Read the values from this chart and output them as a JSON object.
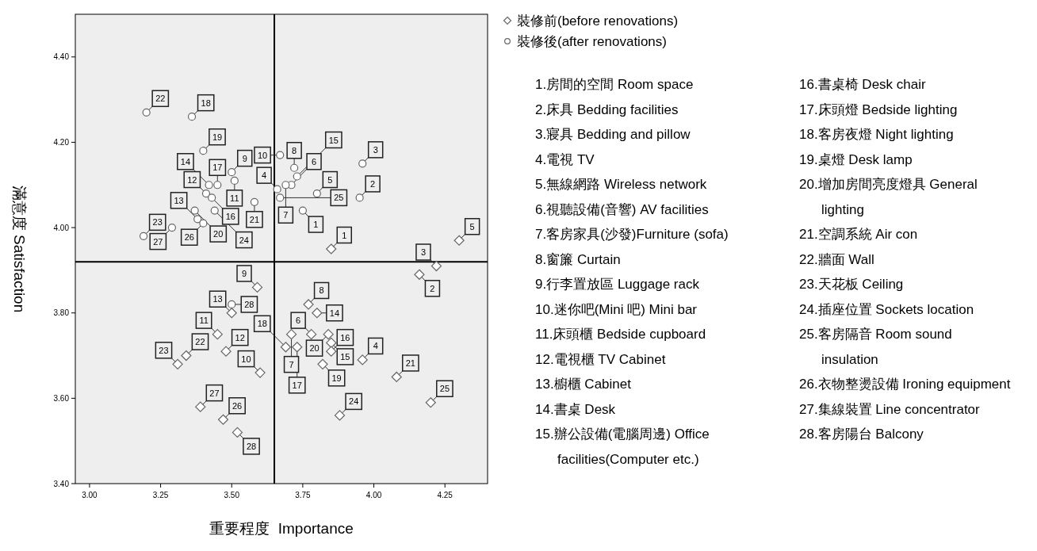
{
  "chart_data": {
    "type": "scatter",
    "xlabel": "重要程度  Importance",
    "ylabel": "滿意度 Satisfaction",
    "xlim": [
      2.95,
      4.4
    ],
    "ylim": [
      3.4,
      4.5
    ],
    "xticks": [
      {
        "value": 3,
        "label": "3.00"
      },
      {
        "value": 3.25,
        "label": "3.25"
      },
      {
        "value": 3.5,
        "label": "3.50"
      },
      {
        "value": 3.75,
        "label": "3.75"
      },
      {
        "value": 4,
        "label": "4.00"
      },
      {
        "value": 4.25,
        "label": "4.25"
      }
    ],
    "yticks": [
      {
        "value": 3.4,
        "label": "3.40"
      },
      {
        "value": 3.6,
        "label": "3.60"
      },
      {
        "value": 3.8,
        "label": "3.80"
      },
      {
        "value": 4,
        "label": "4.00"
      },
      {
        "value": 4.2,
        "label": "4.20"
      },
      {
        "value": 4.4,
        "label": "4.40"
      }
    ],
    "legend": "top right",
    "grid": false,
    "ref_lines": [
      {
        "axis": "x",
        "value": 3.65
      },
      {
        "axis": "y",
        "value": 3.92
      }
    ],
    "series": [
      {
        "name": "裝修前(before renovations)",
        "color": "#666666",
        "marker": "diamond",
        "x": [
          3.85,
          4.16,
          4.22,
          3.96,
          4.3,
          3.78,
          3.71,
          3.77,
          3.59,
          3.6,
          3.45,
          3.48,
          3.5,
          3.8,
          3.85,
          3.85,
          3.73,
          3.69,
          3.82,
          3.84,
          4.08,
          3.34,
          3.31,
          3.88,
          4.2,
          3.47,
          3.39,
          3.52
        ],
        "values": [
          3.95,
          3.89,
          3.91,
          3.69,
          3.97,
          3.75,
          3.75,
          3.82,
          3.86,
          3.66,
          3.75,
          3.71,
          3.8,
          3.8,
          3.73,
          3.71,
          3.72,
          3.72,
          3.68,
          3.75,
          3.65,
          3.7,
          3.68,
          3.56,
          3.59,
          3.55,
          3.58,
          3.52
        ]
      },
      {
        "name": "裝修後(after renovations)",
        "color": "#666666",
        "marker": "circle",
        "x": [
          3.75,
          3.95,
          3.96,
          3.66,
          3.8,
          3.71,
          3.69,
          3.72,
          3.5,
          3.67,
          3.51,
          3.41,
          3.38,
          3.42,
          3.73,
          3.43,
          3.45,
          3.36,
          3.4,
          3.37,
          3.58,
          3.2,
          3.19,
          3.44,
          3.67,
          3.4,
          3.29,
          3.5
        ],
        "values": [
          4.04,
          4.07,
          4.15,
          4.09,
          4.08,
          4.1,
          4.1,
          4.14,
          4.13,
          4.17,
          4.11,
          4.08,
          4.02,
          4.1,
          4.12,
          4.07,
          4.1,
          4.26,
          4.18,
          4.04,
          4.06,
          4.27,
          3.98,
          4.04,
          4.07,
          4.01,
          4.0,
          3.82
        ]
      }
    ],
    "annotations": [
      "1.房間的空間 Room space",
      "2.床具 Bedding facilities",
      "3.寢具 Bedding and pillow",
      "4.電視 TV",
      "5.無線網路 Wireless network",
      "6.視聽設備(音響) AV facilities",
      "7.客房家具(沙發)Furniture (sofa)",
      "8.窗簾 Curtain",
      "9.行李置放區 Luggage rack",
      "10.迷你吧(Mini 吧) Mini bar",
      "11.床頭櫃 Bedside cupboard",
      "12.電視櫃 TV Cabinet",
      "13.櫥櫃 Cabinet",
      "14.書桌 Desk",
      "15.辦公設備(電腦周邊) Office facilities(Computer etc.)",
      "16.書桌椅 Desk chair",
      "17.床頭燈 Bedside lighting",
      "18.客房夜燈 Night lighting",
      "19.桌燈 Desk lamp",
      "20.增加房間亮度燈具 General lighting",
      "21.空調系統 Air con",
      "22.牆面 Wall",
      "23.天花板 Ceiling",
      "24.插座位置 Sockets location",
      "25.客房隔音 Room sound insulation",
      "26.衣物整燙設備 Ironing equipment",
      "27.集線裝置 Line concentrator",
      "28.客房陽台 Balcony",
      {
        "text": "1",
        "x": 3.85,
        "y": 3.95
      },
      {
        "text": "2",
        "x": 4.16,
        "y": 3.89
      },
      {
        "text": "3",
        "x": 4.22,
        "y": 3.91
      },
      {
        "text": "4",
        "x": 3.96,
        "y": 3.69
      },
      {
        "text": "5",
        "x": 4.3,
        "y": 3.97
      },
      {
        "text": "6",
        "x": 3.78,
        "y": 3.75
      },
      {
        "text": "7",
        "x": 3.71,
        "y": 3.75
      },
      {
        "text": "8",
        "x": 3.77,
        "y": 3.82
      },
      {
        "text": "9",
        "x": 3.59,
        "y": 3.86
      },
      {
        "text": "10",
        "x": 3.6,
        "y": 3.66
      },
      {
        "text": "11",
        "x": 3.45,
        "y": 3.75
      },
      {
        "text": "12",
        "x": 3.48,
        "y": 3.71
      },
      {
        "text": "13",
        "x": 3.5,
        "y": 3.8
      },
      {
        "text": "14",
        "x": 3.8,
        "y": 3.8
      },
      {
        "text": "15",
        "x": 3.85,
        "y": 3.73
      },
      {
        "text": "16",
        "x": 3.85,
        "y": 3.71
      },
      {
        "text": "17",
        "x": 3.73,
        "y": 3.72
      },
      {
        "text": "18",
        "x": 3.69,
        "y": 3.72
      },
      {
        "text": "19",
        "x": 3.82,
        "y": 3.68
      },
      {
        "text": "20",
        "x": 3.84,
        "y": 3.75
      },
      {
        "text": "21",
        "x": 4.08,
        "y": 3.65
      },
      {
        "text": "22",
        "x": 3.34,
        "y": 3.7
      },
      {
        "text": "23",
        "x": 3.31,
        "y": 3.68
      },
      {
        "text": "24",
        "x": 3.88,
        "y": 3.56
      },
      {
        "text": "25",
        "x": 4.2,
        "y": 3.59
      },
      {
        "text": "26",
        "x": 3.47,
        "y": 3.55
      },
      {
        "text": "27",
        "x": 3.39,
        "y": 3.58
      },
      {
        "text": "28",
        "x": 3.52,
        "y": 3.52
      },
      {
        "text": "1",
        "x": 3.75,
        "y": 4.04
      },
      {
        "text": "2",
        "x": 3.95,
        "y": 4.07
      },
      {
        "text": "3",
        "x": 3.96,
        "y": 4.15
      },
      {
        "text": "4",
        "x": 3.66,
        "y": 4.09
      },
      {
        "text": "5",
        "x": 3.8,
        "y": 4.08
      },
      {
        "text": "6",
        "x": 3.71,
        "y": 4.1
      },
      {
        "text": "7",
        "x": 3.69,
        "y": 4.1
      },
      {
        "text": "8",
        "x": 3.72,
        "y": 4.14
      },
      {
        "text": "9",
        "x": 3.5,
        "y": 4.13
      },
      {
        "text": "10",
        "x": 3.67,
        "y": 4.17
      },
      {
        "text": "11",
        "x": 3.51,
        "y": 4.11
      },
      {
        "text": "12",
        "x": 3.41,
        "y": 4.08
      },
      {
        "text": "13",
        "x": 3.38,
        "y": 4.02
      },
      {
        "text": "14",
        "x": 3.42,
        "y": 4.1
      },
      {
        "text": "15",
        "x": 3.73,
        "y": 4.12
      },
      {
        "text": "16",
        "x": 3.43,
        "y": 4.07
      },
      {
        "text": "17",
        "x": 3.45,
        "y": 4.1
      },
      {
        "text": "18",
        "x": 3.36,
        "y": 4.26
      },
      {
        "text": "19",
        "x": 3.4,
        "y": 4.18
      },
      {
        "text": "20",
        "x": 3.37,
        "y": 4.04
      },
      {
        "text": "21",
        "x": 3.58,
        "y": 4.06
      },
      {
        "text": "22",
        "x": 3.2,
        "y": 4.27
      },
      {
        "text": "23",
        "x": 3.19,
        "y": 3.98
      },
      {
        "text": "24",
        "x": 3.44,
        "y": 4.04
      },
      {
        "text": "25",
        "x": 3.67,
        "y": 4.07
      },
      {
        "text": "26",
        "x": 3.4,
        "y": 4.01
      },
      {
        "text": "27",
        "x": 3.29,
        "y": 4.0
      },
      {
        "text": "28",
        "x": 3.5,
        "y": 3.82
      }
    ]
  }
}
